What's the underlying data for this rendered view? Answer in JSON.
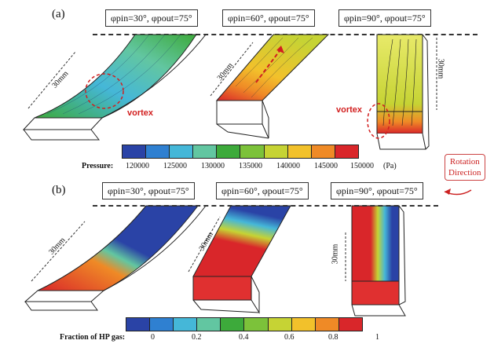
{
  "panel_a": {
    "label": "(a)",
    "captions": [
      "φpin=30°, φpout=75°",
      "φpin=60°, φpout=75°",
      "φpin=90°, φpout=75°"
    ],
    "length_labels": [
      "30mm",
      "30mm",
      "30mm"
    ],
    "vortex_label": "vortex",
    "colorbar": {
      "title": "Pressure:",
      "ticks": [
        "120000",
        "125000",
        "130000",
        "135000",
        "140000",
        "145000",
        "150000"
      ],
      "unit": "(Pa)",
      "colors": [
        "#2a43a6",
        "#2f80d1",
        "#45b7d8",
        "#62c6a1",
        "#3daa3b",
        "#7cc23a",
        "#c6d334",
        "#f2c12b",
        "#ef8a26",
        "#d9262a"
      ]
    }
  },
  "panel_b": {
    "label": "(b)",
    "captions": [
      "φpin=30°, φpout=75°",
      "φpin=60°, φpout=75°",
      "φpin=90°, φpout=75°"
    ],
    "length_labels": [
      "30mm",
      "30mm",
      "30mm"
    ],
    "colorbar": {
      "title": "Fraction of HP gas:",
      "ticks": [
        "0",
        "0.2",
        "0.4",
        "0.6",
        "0.8",
        "1"
      ],
      "colors": [
        "#2a43a6",
        "#2f80d1",
        "#45b7d8",
        "#62c6a1",
        "#3daa3b",
        "#7cc23a",
        "#c6d334",
        "#f2c12b",
        "#ef8a26",
        "#d9262a"
      ]
    }
  },
  "rotation": {
    "line1": "Rotation",
    "line2": "Direction"
  }
}
